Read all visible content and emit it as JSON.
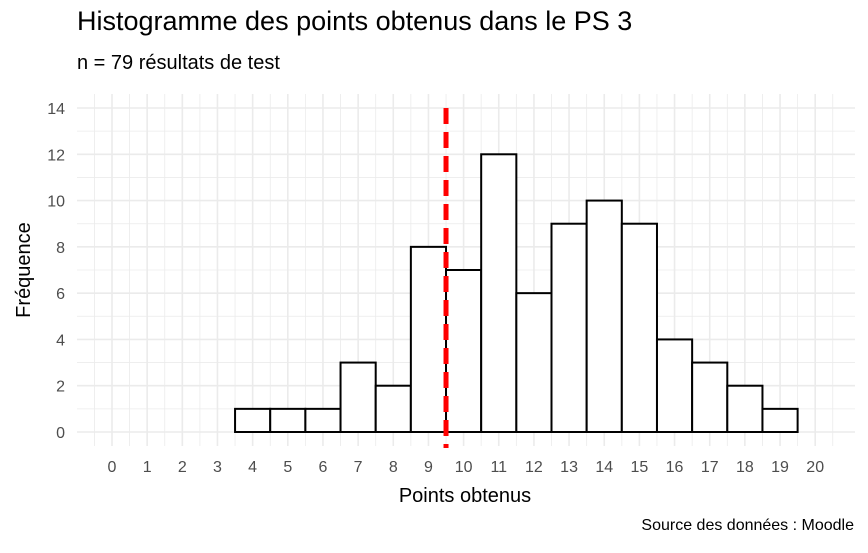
{
  "chart_data": {
    "type": "bar",
    "title": "Histogramme des points obtenus dans le PS 3",
    "subtitle": "n = 79 résultats de test",
    "caption": "Source des données : Moodle",
    "xlabel": "Points obtenus",
    "ylabel": "Fréquence",
    "xlim": [
      -1,
      21
    ],
    "ylim": [
      0,
      14
    ],
    "x_ticks": [
      "0",
      "1",
      "2",
      "3",
      "4",
      "5",
      "6",
      "7",
      "8",
      "9",
      "10",
      "11",
      "12",
      "13",
      "14",
      "15",
      "16",
      "17",
      "18",
      "19",
      "20"
    ],
    "y_ticks": [
      "0",
      "2",
      "4",
      "6",
      "8",
      "10",
      "12",
      "14"
    ],
    "categories": [
      4,
      5,
      6,
      7,
      8,
      9,
      10,
      11,
      12,
      13,
      14,
      15,
      16,
      17,
      18,
      19
    ],
    "values": [
      1,
      1,
      1,
      3,
      2,
      8,
      7,
      12,
      6,
      9,
      10,
      9,
      4,
      3,
      2,
      1
    ],
    "reference_line": {
      "x": 9.5,
      "style": "dashed",
      "color": "#ff0000"
    },
    "bar_fill": "#ffffff",
    "bar_stroke": "#000000",
    "grid": true
  }
}
